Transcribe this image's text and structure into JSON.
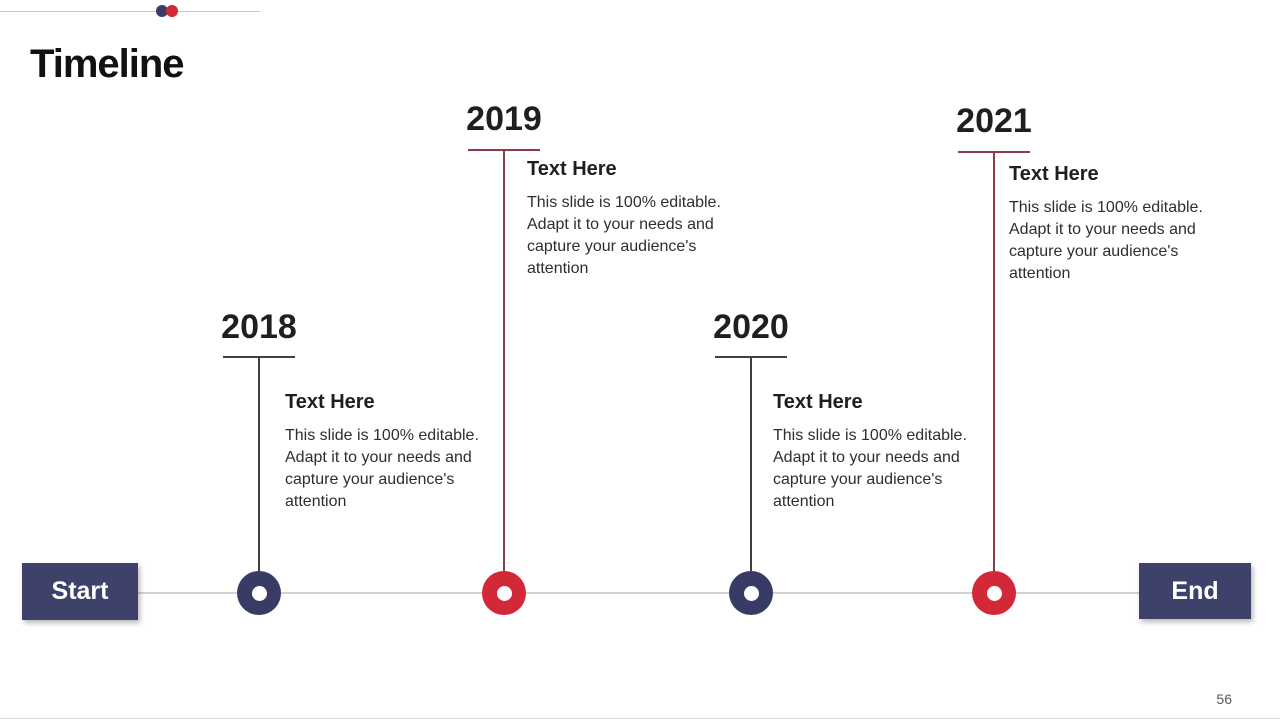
{
  "slide": {
    "title": "Timeline",
    "page_number": "56"
  },
  "header": {
    "navy_dot_color": "#3a3e66",
    "red_dot_color": "#d22838",
    "rule_color": "#c9c9c9"
  },
  "timeline": {
    "start_label": "Start",
    "end_label": "End",
    "button_color": "#3e4169",
    "track_color": "#d2d2d2",
    "milestones": [
      {
        "year": "2018",
        "heading": "Text Here",
        "body": "This slide is 100% editable. Adapt it to your needs and capture your audience's attention",
        "marker_color": "#383c64",
        "line_color": "#3f3f3f",
        "position": "below"
      },
      {
        "year": "2019",
        "heading": "Text Here",
        "body": "This slide is 100% editable. Adapt it to your needs and capture your audience's attention",
        "marker_color": "#d22838",
        "line_color": "#8c3c46",
        "position": "above"
      },
      {
        "year": "2020",
        "heading": "Text Here",
        "body": "This slide is 100% editable. Adapt it to your needs and capture your audience's attention",
        "marker_color": "#383c64",
        "line_color": "#3f3f3f",
        "position": "below"
      },
      {
        "year": "2021",
        "heading": "Text Here",
        "body": "This slide is 100% editable. Adapt it to your needs and capture your audience's attention",
        "marker_color": "#d22838",
        "line_color": "#8c3c46",
        "position": "above"
      }
    ]
  }
}
